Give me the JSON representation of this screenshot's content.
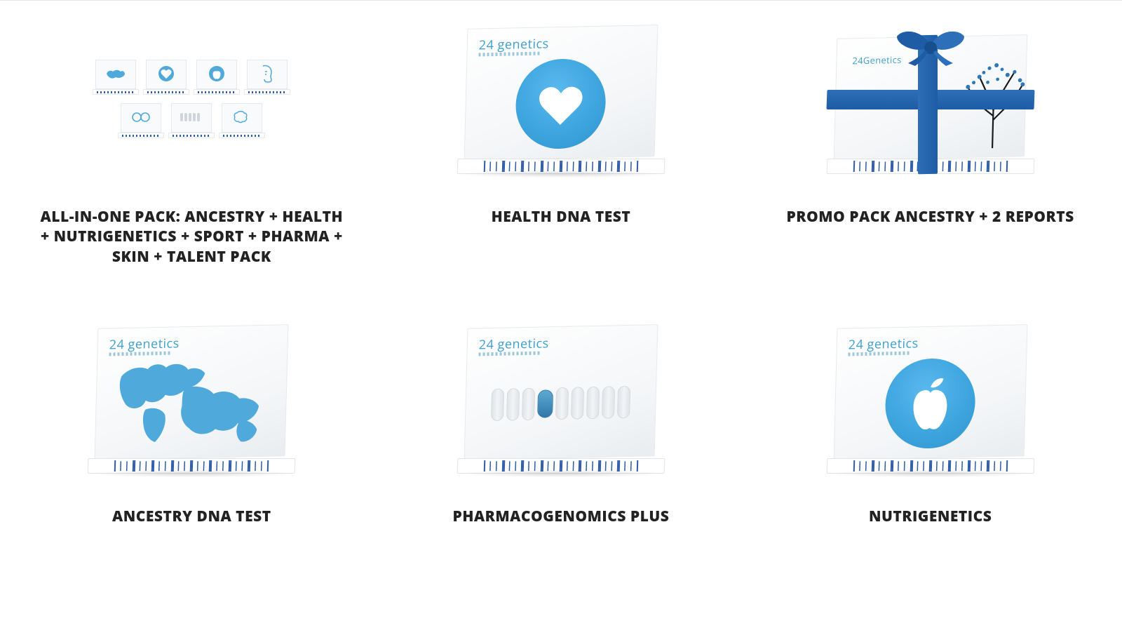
{
  "brand_name": "24 genetics",
  "brand_name_alt": "24Genetics",
  "colors": {
    "accent_blue": "#3ea5de",
    "deep_blue": "#2f5da8",
    "ribbon_blue": "#1e5ca5",
    "text": "#222222",
    "page_bg": "#ffffff",
    "box_border": "#e6eaec"
  },
  "grid": {
    "columns": 3,
    "rows": 2
  },
  "products": [
    {
      "id": "all-in-one",
      "title": "ALL-IN-ONE PACK: ANCESTRY + HEALTH + NUTRIGENETICS + SPORT + PHARMA + SKIN + TALENT PACK",
      "image_type": "multi-box",
      "mini_icons": [
        "world",
        "heart",
        "apple",
        "face",
        "rings",
        "pills",
        "brain"
      ]
    },
    {
      "id": "health",
      "title": "HEALTH DNA TEST",
      "image_type": "single-box",
      "top_icon": "heart"
    },
    {
      "id": "promo-pack",
      "title": "PROMO PACK ANCESTRY + 2 REPORTS",
      "image_type": "gift-box",
      "ribbon_color": "#1e5ca5",
      "motif": "tree"
    },
    {
      "id": "ancestry",
      "title": "ANCESTRY DNA TEST",
      "image_type": "single-box",
      "top_icon": "world-map"
    },
    {
      "id": "pharma",
      "title": "PHARMACOGENOMICS PLUS",
      "image_type": "single-box",
      "top_icon": "pills",
      "pill_count": 9,
      "highlight_index": 3
    },
    {
      "id": "nutri",
      "title": "NUTRIGENETICS",
      "image_type": "single-box",
      "top_icon": "apple"
    }
  ]
}
